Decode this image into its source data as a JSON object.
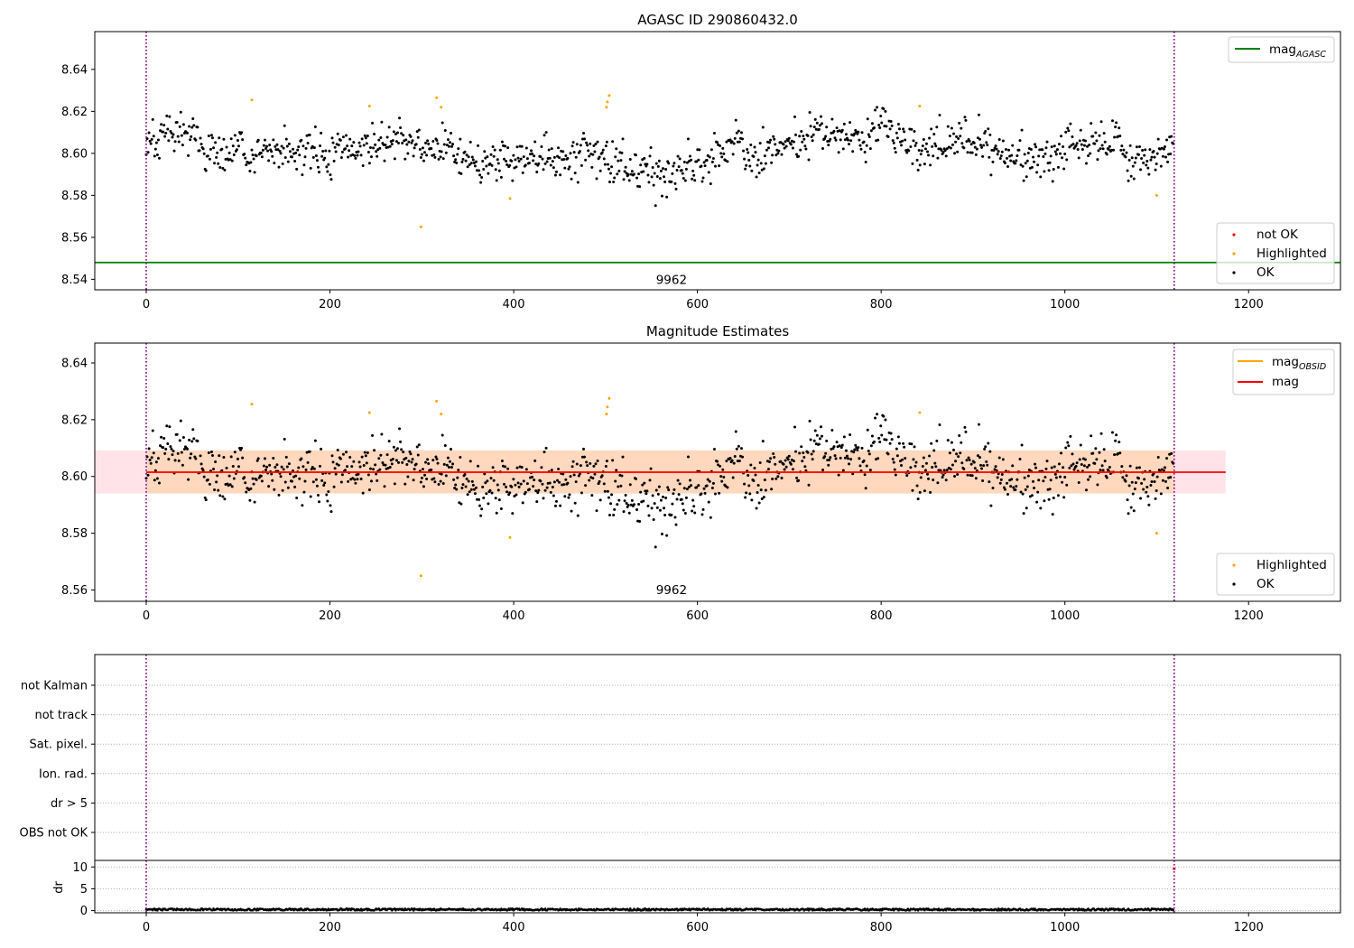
{
  "chart_data": [
    {
      "type": "scatter",
      "title": "AGASC ID 290860432.0",
      "xlim": [
        -56,
        1300
      ],
      "ylim": [
        8.535,
        8.658
      ],
      "xticks": [
        0,
        200,
        400,
        600,
        800,
        1000,
        1200
      ],
      "yticks": [
        8.54,
        8.56,
        8.58,
        8.6,
        8.62,
        8.64
      ],
      "ytick_labels": [
        "8.54",
        "8.56",
        "8.58",
        "8.60",
        "8.62",
        "8.64"
      ],
      "vlines": [
        0,
        1119
      ],
      "vline_color": "#800080",
      "hline": {
        "name_main": "mag",
        "name_sub": "AGASC",
        "value": 8.548,
        "color": "#008000"
      },
      "annotation": {
        "text": "9962",
        "x": 560,
        "y": 8.539
      },
      "legend_lines": [
        {
          "main": "mag",
          "sub": "AGASC",
          "color": "#008000"
        }
      ],
      "legend_markers": [
        {
          "label": "not OK",
          "color": "#ff0000"
        },
        {
          "label": "Highlighted",
          "color": "#ffa500"
        },
        {
          "label": "OK",
          "color": "#000000"
        }
      ],
      "series_summary": {
        "ok_points": {
          "x_range": [
            0,
            1118
          ],
          "count": 1100,
          "center": 8.601,
          "spread": 0.008,
          "color": "#000000"
        },
        "highlighted_points": {
          "color": "#ffa500",
          "x": [
            115,
            243,
            299,
            316,
            321,
            396,
            501,
            502,
            504,
            842,
            1100
          ],
          "y": [
            8.6255,
            8.6225,
            8.565,
            8.6265,
            8.622,
            8.5785,
            8.622,
            8.6245,
            8.6275,
            8.6225,
            8.58
          ]
        }
      }
    },
    {
      "type": "scatter",
      "title": "Magnitude Estimates",
      "xlim": [
        -56,
        1300
      ],
      "ylim": [
        8.556,
        8.647
      ],
      "xticks": [
        0,
        200,
        400,
        600,
        800,
        1000,
        1200
      ],
      "yticks": [
        8.56,
        8.58,
        8.6,
        8.62,
        8.64
      ],
      "ytick_labels": [
        "8.56",
        "8.58",
        "8.60",
        "8.62",
        "8.64"
      ],
      "vlines": [
        0,
        1119
      ],
      "vline_color": "#800080",
      "mag_line": {
        "value": 8.6015,
        "x_range": [
          0,
          1175
        ],
        "color": "#ff0000"
      },
      "mag_band": {
        "y_range": [
          8.594,
          8.6092
        ],
        "x_range": [
          -56,
          1175
        ],
        "color": "#ffc0cb"
      },
      "obsid_band": {
        "y_range": [
          8.594,
          8.6092
        ],
        "x_range": [
          0,
          1119
        ],
        "color": "#ffa500"
      },
      "obsid_line": {
        "value": 8.6015,
        "x_range": [
          0,
          1119
        ],
        "color": "#ffa500"
      },
      "annotation": {
        "text": "9962",
        "x": 560,
        "y": 8.5595
      },
      "legend_lines": [
        {
          "main": "mag",
          "sub": "OBSID",
          "color": "#ffa500"
        },
        {
          "main": "mag",
          "sub": "",
          "color": "#ff0000"
        }
      ],
      "legend_markers": [
        {
          "label": "Highlighted",
          "color": "#ffa500"
        },
        {
          "label": "OK",
          "color": "#000000"
        }
      ]
    },
    {
      "type": "scatter",
      "xlim": [
        -56,
        1300
      ],
      "xticks": [
        0,
        200,
        400,
        600,
        800,
        1000,
        1200
      ],
      "vlines": [
        0,
        1119
      ],
      "vline_color": "#800080",
      "categories": [
        "not Kalman",
        "not track",
        "Sat. pixel.",
        "Ion. rad.",
        "dr > 5",
        "OBS not OK"
      ]
    },
    {
      "type": "scatter",
      "ylabel": "dr",
      "xlim": [
        -56,
        1300
      ],
      "ylim": [
        -0.5,
        11.5
      ],
      "xticks": [
        0,
        200,
        400,
        600,
        800,
        1000,
        1200
      ],
      "xtick_labels": [
        "0",
        "200",
        "400",
        "600",
        "800",
        "1000",
        "1200"
      ],
      "yticks": [
        0,
        5,
        10
      ],
      "ytick_labels": [
        "0",
        "5",
        "10"
      ],
      "vlines": [
        0,
        1119
      ],
      "vline_color": "#800080",
      "outlier": {
        "x": 1119,
        "y": 9.6,
        "color": "#ff0000"
      },
      "series_summary": {
        "x_range": [
          0,
          1118
        ],
        "y_range": [
          0.05,
          0.45
        ],
        "color": "#000000"
      }
    }
  ]
}
